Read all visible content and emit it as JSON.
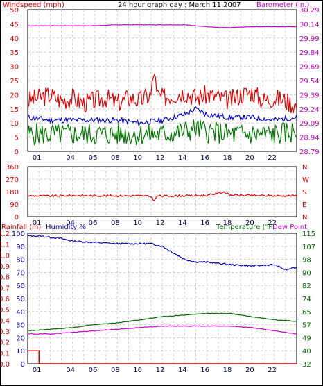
{
  "title": "24 hour graph day : March 11 2007",
  "colors": {
    "wind_gust": "#dd0000",
    "wind_avg": "#0000cc",
    "wind_low": "#007700",
    "barometer": "#cc00cc",
    "direction": "#dd0000",
    "humidity": "#0000aa",
    "temperature": "#006600",
    "dew_point": "#cc00cc",
    "rainfall": "#cc0000",
    "grid": "#cccccc",
    "frame": "#000000"
  },
  "chart_data": [
    {
      "type": "line",
      "name": "wind-barometer",
      "left_label": "Windspeed (mph)",
      "right_label": "Barometer (in.)",
      "x_ticks": [
        "01",
        "04",
        "06",
        "08",
        "10",
        "12",
        "14",
        "16",
        "18",
        "20",
        "22"
      ],
      "y_left_ticks": [
        "0",
        "5",
        "10",
        "15",
        "20",
        "25",
        "30",
        "35",
        "40",
        "45",
        "50"
      ],
      "y_left_range": [
        0,
        50
      ],
      "y_right_ticks": [
        "28.79",
        "28.94",
        "29.09",
        "29.24",
        "29.39",
        "29.54",
        "29.69",
        "29.84",
        "29.99",
        "30.14",
        "30.29"
      ],
      "y_right_range": [
        28.79,
        30.29
      ],
      "grid": true,
      "series": {
        "gust": {
          "x": [
            0,
            1,
            2,
            3,
            4,
            5,
            6,
            7,
            8,
            9,
            10,
            11,
            11.3,
            11.5,
            12,
            13,
            14,
            15,
            16,
            17,
            18,
            19,
            20,
            21,
            22,
            23,
            24
          ],
          "y": [
            18,
            19,
            20,
            18,
            19,
            17,
            18,
            19,
            17,
            19,
            18,
            20,
            29,
            20,
            19,
            20,
            21,
            19,
            20,
            19,
            18,
            20,
            21,
            18,
            19,
            18,
            16
          ]
        },
        "average": {
          "x": [
            0,
            2,
            4,
            6,
            8,
            10,
            12,
            14,
            15,
            16,
            18,
            20,
            22,
            24
          ],
          "y": [
            12,
            11,
            11,
            11,
            11,
            10,
            11,
            13,
            15,
            13,
            12,
            12,
            11,
            12
          ]
        },
        "low": {
          "x": [
            0,
            2,
            4,
            6,
            8,
            10,
            12,
            14,
            15,
            16,
            18,
            20,
            22,
            24
          ],
          "y": [
            6,
            6,
            6,
            6,
            6,
            6,
            6,
            7,
            8,
            7,
            6,
            6,
            6,
            7
          ]
        },
        "barometer": {
          "x": [
            0,
            2,
            4,
            6,
            8,
            10,
            12,
            14,
            16,
            17,
            18,
            20,
            22,
            24
          ],
          "y": [
            30.12,
            30.12,
            30.12,
            30.12,
            30.13,
            30.13,
            30.13,
            30.13,
            30.11,
            30.1,
            30.1,
            30.11,
            30.11,
            30.11
          ]
        }
      }
    },
    {
      "type": "line",
      "name": "wind-direction",
      "y_left_ticks": [
        "0",
        "90",
        "180",
        "270",
        "360"
      ],
      "y_left_range": [
        0,
        360
      ],
      "y_right_ticks": [
        "N",
        "E",
        "S",
        "W",
        "N"
      ],
      "x_ticks": [
        "01",
        "04",
        "06",
        "08",
        "10",
        "12",
        "14",
        "16",
        "18",
        "20",
        "22"
      ],
      "grid": true,
      "series": {
        "direction": {
          "x": [
            0,
            2,
            4,
            6,
            8,
            10,
            11,
            11.3,
            11.6,
            12,
            14,
            16,
            17.5,
            18,
            20,
            22,
            24
          ],
          "y": [
            150,
            148,
            152,
            150,
            150,
            150,
            145,
            115,
            150,
            148,
            150,
            152,
            178,
            155,
            152,
            150,
            150
          ]
        }
      }
    },
    {
      "type": "line",
      "name": "temp-humidity-rain",
      "left_label_rain": "Rainfall (in)",
      "left_label_humidity": "Humidity %",
      "right_label_temp": "Temperature (°F)",
      "right_label_dew": "Dew Point",
      "y_left_rain_ticks": [
        "0.0",
        "0.1",
        "0.2",
        "0.3",
        "0.4",
        "0.5",
        "0.6",
        "0.7",
        "0.8",
        "0.9",
        "1.0",
        "1.1",
        "1.2"
      ],
      "y_left_rain_range": [
        0,
        1.2
      ],
      "y_left_humidity_ticks": [
        "0",
        "10",
        "20",
        "30",
        "40",
        "50",
        "60",
        "70",
        "80",
        "90",
        "100"
      ],
      "y_left_humidity_range": [
        0,
        100
      ],
      "y_right_ticks": [
        "32",
        "40",
        "49",
        "57",
        "65",
        "74",
        "82",
        "90",
        "98",
        "107",
        "115"
      ],
      "y_right_range": [
        32,
        115
      ],
      "x_ticks": [
        "01",
        "04",
        "06",
        "08",
        "10",
        "12",
        "14",
        "16",
        "18",
        "20",
        "22"
      ],
      "grid": true,
      "series": {
        "humidity": {
          "x": [
            0,
            1,
            2,
            3,
            4,
            6,
            8,
            10,
            11,
            12,
            13,
            14,
            15,
            16,
            18,
            20,
            22,
            23,
            24
          ],
          "y": [
            98,
            98,
            97,
            96,
            94,
            93,
            92,
            92,
            92,
            90,
            85,
            80,
            78,
            78,
            76,
            75,
            76,
            72,
            74
          ]
        },
        "temperature": {
          "x": [
            0,
            2,
            4,
            6,
            8,
            10,
            12,
            14,
            16,
            18,
            20,
            22,
            24
          ],
          "y": [
            53,
            54,
            55,
            57,
            58,
            60,
            62,
            63,
            64,
            64,
            62,
            60,
            59
          ]
        },
        "dew_point": {
          "x": [
            0,
            2,
            4,
            6,
            8,
            10,
            12,
            14,
            16,
            18,
            20,
            22,
            24
          ],
          "y": [
            51,
            51,
            52,
            53,
            54,
            55,
            56,
            56,
            56,
            56,
            55,
            53,
            51
          ]
        },
        "rainfall": {
          "x": [
            0,
            1,
            1.01,
            24
          ],
          "y": [
            0.12,
            0.12,
            0.0,
            0.0
          ]
        }
      }
    }
  ]
}
